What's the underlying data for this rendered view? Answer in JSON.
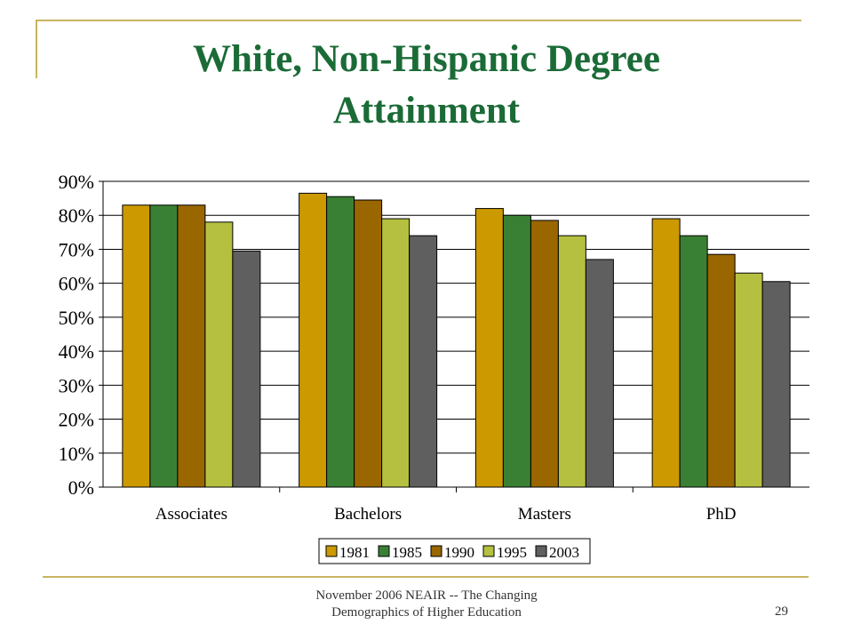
{
  "slide": {
    "title_line1": "White, Non-Hispanic Degree",
    "title_line2": "Attainment",
    "footer_line1": "November 2006 NEAIR -- The Changing",
    "footer_line2": "Demographics of Higher Education",
    "page_number": "29"
  },
  "colors": {
    "frame": "#c8b560",
    "title": "#1b6b37"
  },
  "chart_data": {
    "type": "bar",
    "categories": [
      "Associates",
      "Bachelors",
      "Masters",
      "PhD"
    ],
    "series": [
      {
        "name": "1981",
        "color": "#cc9900",
        "values": [
          83,
          86.5,
          82,
          79
        ]
      },
      {
        "name": "1985",
        "color": "#3a8034",
        "values": [
          83,
          85.5,
          80,
          74
        ]
      },
      {
        "name": "1990",
        "color": "#996600",
        "values": [
          83,
          84.5,
          78.5,
          68.5
        ]
      },
      {
        "name": "1995",
        "color": "#b5c040",
        "values": [
          78,
          79,
          74,
          63
        ]
      },
      {
        "name": "2003",
        "color": "#5f5f5f",
        "values": [
          69.5,
          74,
          67,
          60.5
        ]
      }
    ],
    "ylim": [
      0,
      90
    ],
    "yticks": [
      "0%",
      "10%",
      "20%",
      "30%",
      "40%",
      "50%",
      "60%",
      "70%",
      "80%",
      "90%"
    ],
    "grid": true,
    "legend_position": "bottom"
  }
}
